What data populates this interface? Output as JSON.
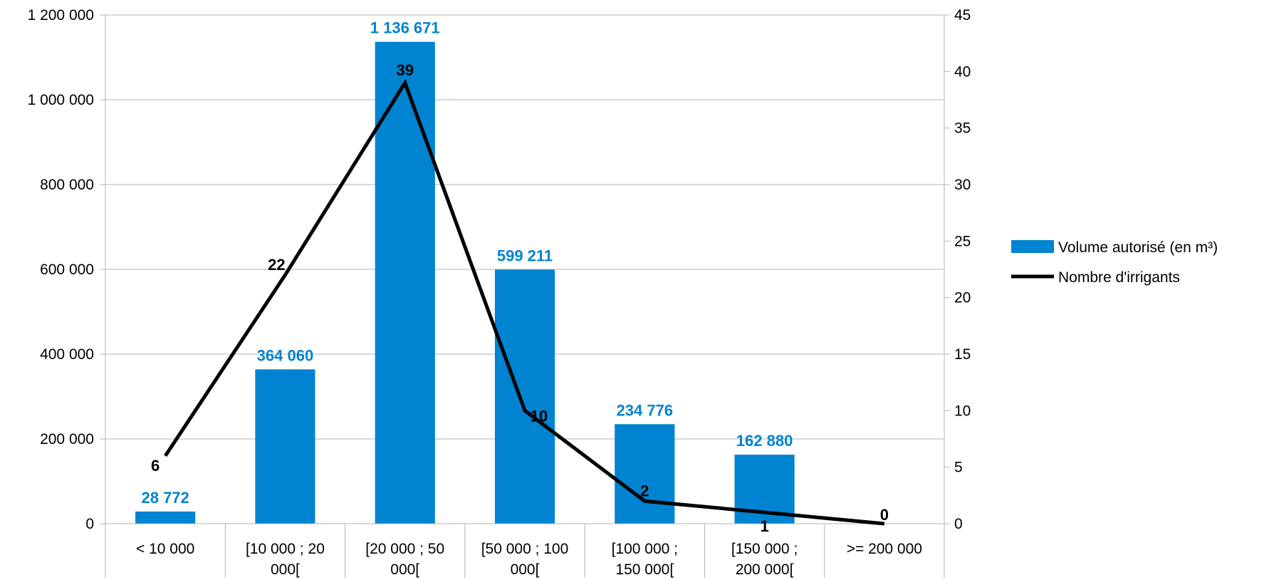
{
  "chart_data": {
    "type": "bar",
    "categories": [
      "< 10 000",
      "[10 000 ; 20 000[",
      "[20 000 ; 50 000[",
      "[50 000 ; 100 000[",
      "[100 000 ; 150 000[",
      "[150 000 ; 200 000[",
      ">= 200 000"
    ],
    "category_label_lines": [
      [
        "< 10 000"
      ],
      [
        "[10 000 ; 20",
        "000["
      ],
      [
        "[20 000 ; 50",
        "000["
      ],
      [
        "[50 000 ; 100",
        "000["
      ],
      [
        "[100 000 ;",
        "150 000["
      ],
      [
        "[150 000 ;",
        "200 000["
      ],
      [
        ">= 200 000"
      ]
    ],
    "series": [
      {
        "name": "Volume autorisé (en  m³)",
        "type": "bar",
        "axis": "left",
        "color": "#0083d1",
        "values": [
          28772,
          364060,
          1136671,
          599211,
          234776,
          162880,
          null
        ],
        "labels": [
          "28 772",
          "364 060",
          "1 136 671",
          "599 211",
          "234 776",
          "162 880",
          ""
        ]
      },
      {
        "name": "Nombre d'irrigants",
        "type": "line",
        "axis": "right",
        "color": "#000000",
        "values": [
          6,
          22,
          39,
          10,
          2,
          1,
          0
        ],
        "labels": [
          "6",
          "22",
          "39",
          "10",
          "2",
          "1",
          "0"
        ]
      }
    ],
    "y_left": {
      "min": 0,
      "max": 1200000,
      "ticks": [
        0,
        200000,
        400000,
        600000,
        800000,
        1000000,
        1200000
      ],
      "tick_labels": [
        "0",
        "200 000",
        "400 000",
        "600 000",
        "800 000",
        "1 000 000",
        "1 200 000"
      ]
    },
    "y_right": {
      "min": 0,
      "max": 45,
      "ticks": [
        0,
        5,
        10,
        15,
        20,
        25,
        30,
        35,
        40,
        45
      ],
      "tick_labels": [
        "0",
        "5",
        "10",
        "15",
        "20",
        "25",
        "30",
        "35",
        "40",
        "45"
      ]
    },
    "grid": true,
    "legend_position": "right",
    "title": "",
    "xlabel": "",
    "ylabel": ""
  }
}
